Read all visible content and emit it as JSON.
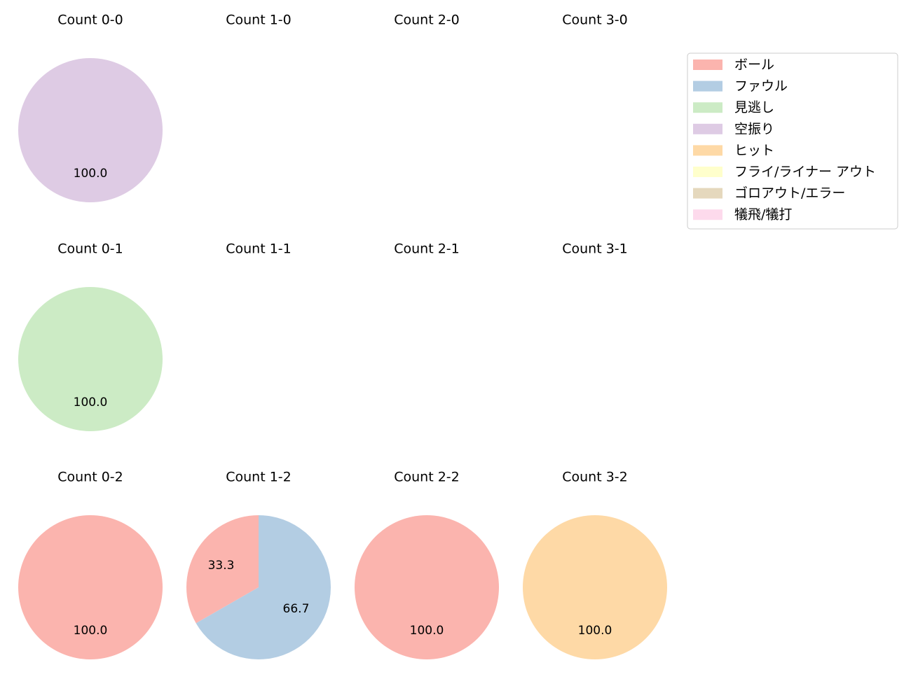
{
  "chart_data": {
    "type": "pie",
    "value_format": "percent",
    "start_angle_deg": 90,
    "direction": "counterclockwise",
    "categories": [
      "ボール",
      "ファウル",
      "見逃し",
      "空振り",
      "ヒット",
      "フライ/ライナー アウト",
      "ゴロアウト/エラー",
      "犠飛/犠打"
    ],
    "colors": [
      "#fbb4ae",
      "#b3cde3",
      "#ccebc5",
      "#decbe4",
      "#fed9a6",
      "#ffffcc",
      "#e5d8bd",
      "#fddaec"
    ],
    "legend": {
      "placement": "top-right"
    },
    "panels": [
      {
        "title": "Count 0-0",
        "values": [
          0,
          0,
          0,
          100.0,
          0,
          0,
          0,
          0
        ]
      },
      {
        "title": "Count 1-0",
        "values": []
      },
      {
        "title": "Count 2-0",
        "values": []
      },
      {
        "title": "Count 3-0",
        "values": []
      },
      {
        "title": "Count 0-1",
        "values": [
          0,
          0,
          100.0,
          0,
          0,
          0,
          0,
          0
        ]
      },
      {
        "title": "Count 1-1",
        "values": []
      },
      {
        "title": "Count 2-1",
        "values": []
      },
      {
        "title": "Count 3-1",
        "values": []
      },
      {
        "title": "Count 0-2",
        "values": [
          100.0,
          0,
          0,
          0,
          0,
          0,
          0,
          0
        ]
      },
      {
        "title": "Count 1-2",
        "values": [
          33.3,
          66.7,
          0,
          0,
          0,
          0,
          0,
          0
        ]
      },
      {
        "title": "Count 2-2",
        "values": [
          100.0,
          0,
          0,
          0,
          0,
          0,
          0,
          0
        ]
      },
      {
        "title": "Count 3-2",
        "values": [
          0,
          0,
          0,
          0,
          100.0,
          0,
          0,
          0
        ]
      }
    ]
  }
}
